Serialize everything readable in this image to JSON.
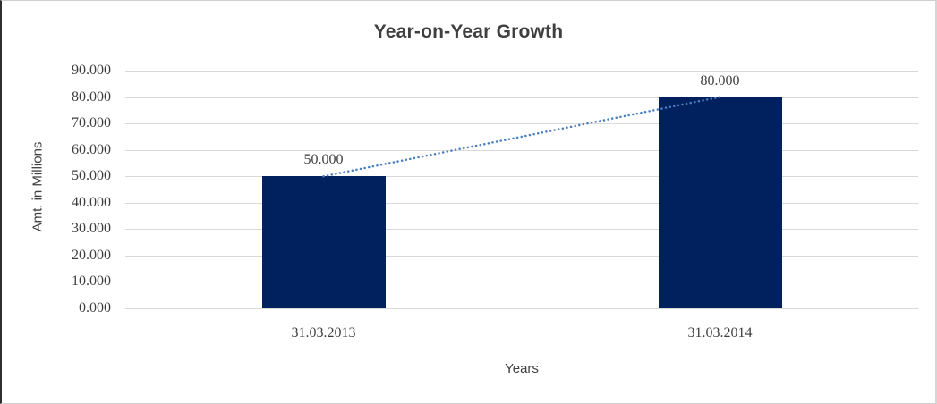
{
  "chart_data": {
    "type": "bar",
    "title": "Year-on-Year Growth",
    "xlabel": "Years",
    "ylabel": "Amt. in Millions",
    "categories": [
      "31.03.2013",
      "31.03.2014"
    ],
    "values": [
      50,
      80
    ],
    "data_labels": [
      "50.000",
      "80.000"
    ],
    "ylim": [
      0,
      90
    ],
    "ytick_values": [
      0,
      10,
      20,
      30,
      40,
      50,
      60,
      70,
      80,
      90
    ],
    "ytick_labels": [
      "0.000",
      "10.000",
      "20.000",
      "30.000",
      "40.000",
      "50.000",
      "60.000",
      "70.000",
      "80.000",
      "90.000"
    ],
    "grid": true,
    "legend": "none",
    "trendline": {
      "style": "dotted",
      "connects": "bar tops"
    },
    "colors": {
      "bar": "#00205E",
      "gridline": "#d9d9d9",
      "trendline": "#4a7ebf",
      "text": "#3d3d3d",
      "title_text": "#3f3f3f"
    }
  }
}
